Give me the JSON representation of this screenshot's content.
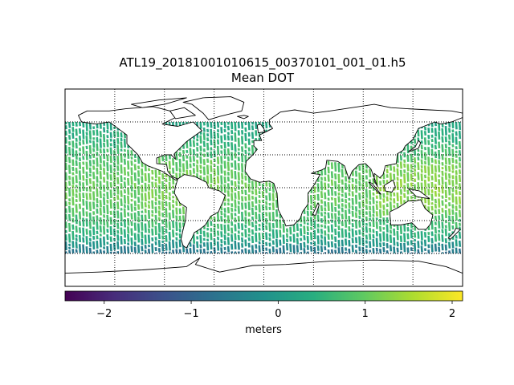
{
  "figure": {
    "title_line1": "ATL19_20181001010615_00370101_001_01.h5",
    "title_line2": "Mean DOT"
  },
  "map_data": {
    "projection": "equirectangular",
    "lon_range": [
      -180,
      180
    ],
    "lat_range": [
      -90,
      90
    ],
    "data_lat_range": [
      -60,
      60
    ],
    "graticule_lon": [
      -135,
      -90,
      -45,
      0,
      45,
      90,
      135
    ],
    "graticule_lat": [
      -60,
      -30,
      0,
      30,
      60
    ],
    "graticule_style": "dotted",
    "data_pattern": "vertical satellite ground tracks over ocean"
  },
  "colorbar": {
    "colormap": "viridis",
    "vmin": -2.45,
    "vmax": 2.12,
    "ticks": [
      -2,
      -1,
      0,
      1,
      2
    ],
    "tick_labels": [
      "−2",
      "−1",
      "0",
      "1",
      "2"
    ],
    "label": "meters",
    "orientation": "horizontal",
    "placement": "bottom"
  }
}
